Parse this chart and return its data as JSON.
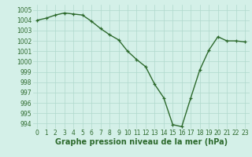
{
  "x": [
    0,
    1,
    2,
    3,
    4,
    5,
    6,
    7,
    8,
    9,
    10,
    11,
    12,
    13,
    14,
    15,
    16,
    17,
    18,
    19,
    20,
    21,
    22,
    23
  ],
  "y": [
    1004.0,
    1004.2,
    1004.5,
    1004.7,
    1004.6,
    1004.5,
    1003.9,
    1003.2,
    1002.6,
    1002.1,
    1001.0,
    1000.2,
    999.5,
    997.8,
    996.5,
    993.9,
    993.7,
    996.5,
    999.2,
    1001.1,
    1002.4,
    1002.0,
    1002.0,
    1001.9
  ],
  "xlabel": "Graphe pression niveau de la mer (hPa)",
  "ylim": [
    993.5,
    1005.5
  ],
  "xlim": [
    -0.5,
    23.5
  ],
  "yticks": [
    994,
    995,
    996,
    997,
    998,
    999,
    1000,
    1001,
    1002,
    1003,
    1004,
    1005
  ],
  "xticks": [
    0,
    1,
    2,
    3,
    4,
    5,
    6,
    7,
    8,
    9,
    10,
    11,
    12,
    13,
    14,
    15,
    16,
    17,
    18,
    19,
    20,
    21,
    22,
    23
  ],
  "line_color": "#2d6a2d",
  "bg_color": "#d4f0e8",
  "grid_color": "#b0d8cc",
  "xlabel_fontsize": 7,
  "xlabel_fontweight": "bold",
  "tick_fontsize": 5.5,
  "marker_size": 3,
  "line_width": 1.0
}
